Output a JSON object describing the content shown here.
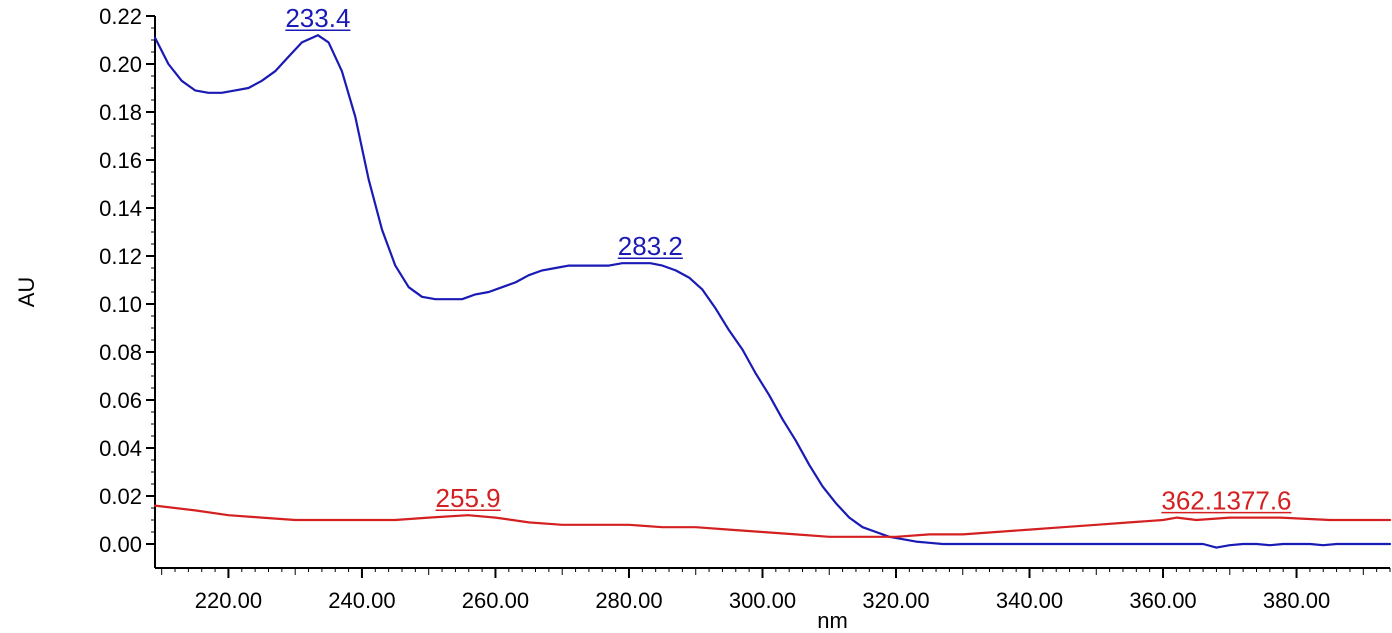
{
  "chart_data": {
    "type": "line",
    "title": "",
    "xlabel": "nm",
    "ylabel": "AU",
    "xlim": [
      209,
      394
    ],
    "ylim": [
      -0.01,
      0.22
    ],
    "grid": false,
    "x_ticks": [
      220,
      240,
      260,
      280,
      300,
      320,
      340,
      360,
      380
    ],
    "x_tick_labels": [
      "220.00",
      "240.00",
      "260.00",
      "280.00",
      "300.00",
      "320.00",
      "340.00",
      "360.00",
      "380.00"
    ],
    "y_ticks": [
      0.0,
      0.02,
      0.04,
      0.06,
      0.08,
      0.1,
      0.12,
      0.14,
      0.16,
      0.18,
      0.2,
      0.22
    ],
    "y_tick_labels": [
      "0.00",
      "0.02",
      "0.04",
      "0.06",
      "0.08",
      "0.10",
      "0.12",
      "0.14",
      "0.16",
      "0.18",
      "0.20",
      "0.22"
    ],
    "series": [
      {
        "color": "#1a1ab4",
        "x": [
          209,
          211,
          213,
          215,
          217,
          219,
          221,
          223,
          225,
          227,
          229,
          231,
          233.4,
          235,
          237,
          239,
          241,
          243,
          245,
          247,
          249,
          251,
          253,
          255,
          257,
          259,
          261,
          263,
          265,
          267,
          269,
          271,
          273,
          275,
          277,
          279,
          281,
          283.2,
          285,
          287,
          289,
          291,
          293,
          295,
          297,
          299,
          301,
          303,
          305,
          307,
          309,
          311,
          313,
          315,
          317,
          319,
          321,
          323,
          325,
          327,
          329,
          331,
          335,
          340,
          345,
          350,
          355,
          360,
          362,
          364,
          366,
          368,
          370,
          372,
          374,
          376,
          378,
          380,
          382,
          384,
          386,
          388,
          390,
          392,
          394
        ],
        "y": [
          0.211,
          0.2,
          0.193,
          0.189,
          0.188,
          0.188,
          0.189,
          0.19,
          0.193,
          0.197,
          0.203,
          0.209,
          0.212,
          0.209,
          0.197,
          0.178,
          0.152,
          0.131,
          0.116,
          0.107,
          0.103,
          0.102,
          0.102,
          0.102,
          0.104,
          0.105,
          0.107,
          0.109,
          0.112,
          0.114,
          0.115,
          0.116,
          0.116,
          0.116,
          0.116,
          0.117,
          0.117,
          0.117,
          0.116,
          0.114,
          0.111,
          0.106,
          0.098,
          0.089,
          0.081,
          0.071,
          0.062,
          0.052,
          0.043,
          0.033,
          0.024,
          0.017,
          0.011,
          0.007,
          0.005,
          0.003,
          0.002,
          0.001,
          0.0005,
          0.0,
          0.0,
          0.0,
          0.0,
          0.0,
          0.0,
          0.0,
          0.0,
          0.0,
          0.0,
          0.0,
          0.0,
          -0.0015,
          -0.0005,
          0.0,
          0.0,
          -0.0005,
          0.0,
          0.0,
          0.0,
          -0.0005,
          0.0,
          0.0,
          0.0,
          0.0,
          0.0
        ]
      },
      {
        "color": "#d42020",
        "x": [
          209,
          215,
          220,
          225,
          230,
          235,
          240,
          245,
          250,
          255.9,
          260,
          265,
          270,
          275,
          280,
          285,
          290,
          295,
          300,
          305,
          310,
          315,
          320,
          325,
          330,
          335,
          340,
          345,
          350,
          355,
          360,
          362.1,
          365,
          370,
          377.6,
          385,
          394
        ],
        "y": [
          0.016,
          0.014,
          0.012,
          0.011,
          0.01,
          0.01,
          0.01,
          0.01,
          0.011,
          0.012,
          0.011,
          0.009,
          0.008,
          0.008,
          0.008,
          0.007,
          0.007,
          0.006,
          0.005,
          0.004,
          0.003,
          0.003,
          0.003,
          0.004,
          0.004,
          0.005,
          0.006,
          0.007,
          0.008,
          0.009,
          0.01,
          0.011,
          0.01,
          0.011,
          0.011,
          0.01,
          0.01
        ]
      }
    ],
    "annotations": [
      {
        "text": "233.4",
        "x": 233.4,
        "y": 0.212,
        "color": "#1a1ab4"
      },
      {
        "text": "283.2",
        "x": 283.2,
        "y": 0.117,
        "color": "#1a1ab4"
      },
      {
        "text": "255.9",
        "x": 255.9,
        "y": 0.012,
        "color": "#d42020"
      },
      {
        "text": "362.1377.6",
        "x": 369.5,
        "y": 0.011,
        "color": "#d42020"
      }
    ]
  }
}
